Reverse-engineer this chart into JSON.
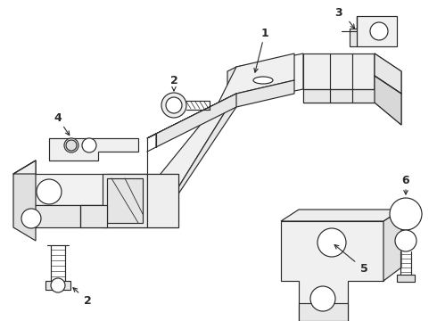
{
  "bg_color": "#ffffff",
  "line_color": "#2a2a2a",
  "lw": 0.85,
  "fig_w": 4.9,
  "fig_h": 3.6,
  "dpi": 100
}
